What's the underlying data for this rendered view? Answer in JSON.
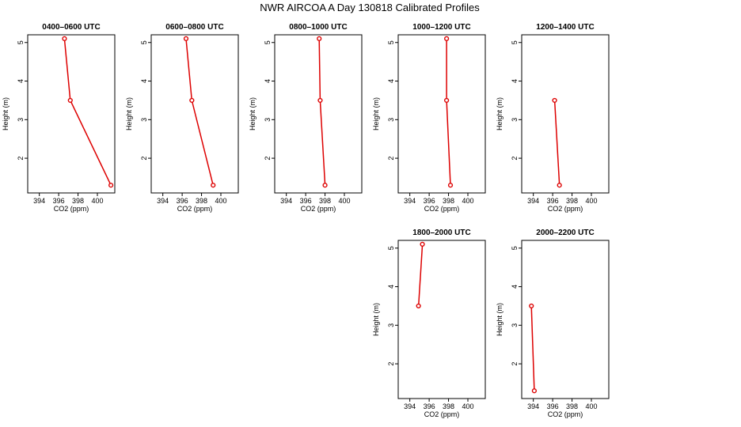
{
  "chart_data": {
    "type": "line",
    "title": "NWR AIRCOA A  Day 130818  Calibrated Profiles",
    "xlabel": "CO2 (ppm)",
    "ylabel": "Height (m)",
    "xlim": [
      392.8,
      401.8
    ],
    "ylim": [
      1.1,
      5.2
    ],
    "x_ticks": [
      394,
      396,
      398,
      400
    ],
    "y_ticks": [
      2,
      3,
      4,
      5
    ],
    "line_color": "#dd0000",
    "panels": [
      {
        "title": "0400–0600 UTC",
        "co2": [
          401.4,
          397.2,
          396.6
        ],
        "height": [
          1.3,
          3.5,
          5.1
        ]
      },
      {
        "title": "0600–0800 UTC",
        "co2": [
          399.2,
          397.0,
          396.4
        ],
        "height": [
          1.3,
          3.5,
          5.1
        ]
      },
      {
        "title": "0800–1000 UTC",
        "co2": [
          398.0,
          397.5,
          397.4
        ],
        "height": [
          1.3,
          3.5,
          5.1
        ]
      },
      {
        "title": "1000–1200 UTC",
        "co2": [
          398.2,
          397.8,
          397.8
        ],
        "height": [
          1.3,
          3.5,
          5.1
        ]
      },
      {
        "title": "1200–1400 UTC",
        "co2": [
          396.7,
          396.2
        ],
        "height": [
          1.3,
          3.5
        ]
      },
      {
        "title": "1800–2000 UTC",
        "co2": [
          394.9,
          395.3
        ],
        "height": [
          3.5,
          5.1
        ]
      },
      {
        "title": "2000–2200 UTC",
        "co2": [
          394.1,
          393.8
        ],
        "height": [
          1.3,
          3.5
        ]
      }
    ]
  }
}
